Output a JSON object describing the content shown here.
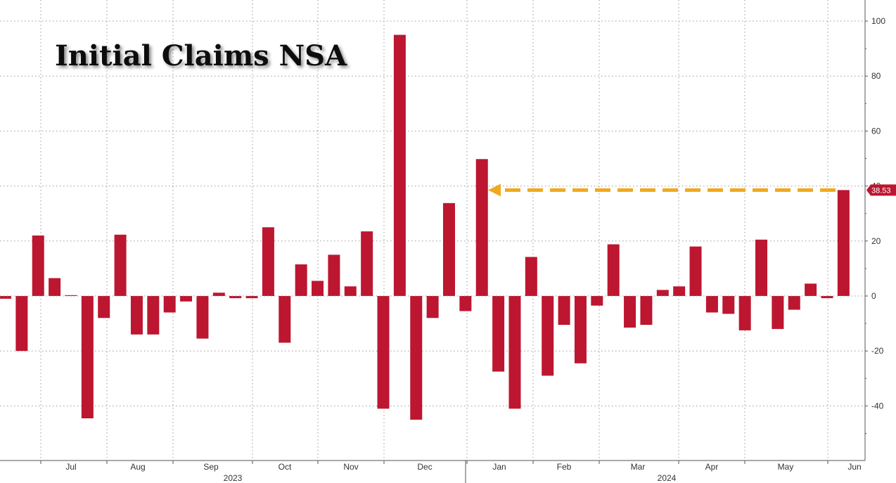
{
  "chart_data": {
    "type": "bar",
    "title": "Initial Claims NSA",
    "ylim": [
      -52,
      105
    ],
    "yticks": [
      -40,
      -20,
      0,
      20,
      40,
      60,
      80,
      100
    ],
    "grid": true,
    "legend": "none",
    "bar_color": "#bd1630",
    "arrow_color": "#f2a81d",
    "months": [
      "Jul",
      "Aug",
      "Sep",
      "Oct",
      "Nov",
      "Dec",
      "Jan",
      "Feb",
      "Mar",
      "Apr",
      "May",
      "Jun"
    ],
    "years": [
      "2023",
      "2024"
    ],
    "last_value_label": "38.53",
    "series": [
      {
        "values": [
          -1,
          -20,
          22,
          6.5,
          0.3,
          -44.5,
          -8,
          22.3,
          -14,
          -14,
          -6,
          -2,
          -15.5,
          1.2,
          -0.8,
          -0.8,
          25,
          -17,
          11.5,
          5.5,
          15,
          3.5,
          23.5,
          -41,
          95,
          -45,
          -8,
          33.8,
          -5.5,
          49.8,
          -27.5,
          -41,
          14.2,
          -29,
          -10.5,
          -24.5,
          -3.5,
          18.8,
          -11.5,
          -10.5,
          2.2,
          3.5,
          18,
          -6,
          -6.5,
          -12.5,
          20.5,
          -12,
          -5,
          4.5,
          -0.8,
          38.53
        ]
      }
    ]
  }
}
